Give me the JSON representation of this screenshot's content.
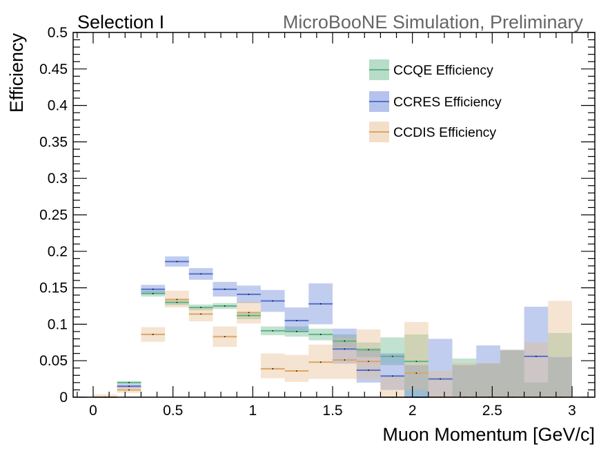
{
  "chart_data": {
    "type": "bar",
    "title_left": "Selection I",
    "title_right": "MicroBooNE Simulation, Preliminary",
    "xlabel": "Muon Momentum [GeV/c]",
    "ylabel": "Efficiency",
    "xlim": [
      -0.125,
      3.125
    ],
    "ylim": [
      0,
      0.5
    ],
    "x_ticks": [
      {
        "value": 0,
        "label": "0"
      },
      {
        "value": 0.5,
        "label": "0.5"
      },
      {
        "value": 1,
        "label": "1"
      },
      {
        "value": 1.5,
        "label": "1.5"
      },
      {
        "value": 2,
        "label": "2"
      },
      {
        "value": 2.5,
        "label": "2.5"
      },
      {
        "value": 3,
        "label": "3"
      }
    ],
    "y_ticks": [
      {
        "value": 0,
        "label": "0"
      },
      {
        "value": 0.05,
        "label": "0.05"
      },
      {
        "value": 0.1,
        "label": "0.1"
      },
      {
        "value": 0.15,
        "label": "0.15"
      },
      {
        "value": 0.2,
        "label": "0.2"
      },
      {
        "value": 0.25,
        "label": "0.25"
      },
      {
        "value": 0.3,
        "label": "0.3"
      },
      {
        "value": 0.35,
        "label": "0.35"
      },
      {
        "value": 0.4,
        "label": "0.4"
      },
      {
        "value": 0.45,
        "label": "0.45"
      },
      {
        "value": 0.5,
        "label": "0.5"
      }
    ],
    "legend_placement": "top-right",
    "bin_edges": [
      0,
      0.15,
      0.3,
      0.45,
      0.6,
      0.75,
      0.9,
      1.05,
      1.2,
      1.35,
      1.5,
      1.65,
      1.8,
      1.95,
      2.1,
      2.25,
      2.4,
      2.55,
      2.7,
      2.85,
      3.0
    ],
    "series": [
      {
        "name": "CCQE Efficiency",
        "line_color": "#5fb385",
        "band_color": "#5fb385",
        "bins": [
          {
            "x0": 0.15,
            "x1": 0.3,
            "y": 0.02,
            "lo": 0.018,
            "hi": 0.022
          },
          {
            "x0": 0.3,
            "x1": 0.45,
            "y": 0.142,
            "lo": 0.138,
            "hi": 0.146
          },
          {
            "x0": 0.45,
            "x1": 0.6,
            "y": 0.13,
            "lo": 0.126,
            "hi": 0.134
          },
          {
            "x0": 0.6,
            "x1": 0.75,
            "y": 0.123,
            "lo": 0.119,
            "hi": 0.127
          },
          {
            "x0": 0.75,
            "x1": 0.9,
            "y": 0.125,
            "lo": 0.121,
            "hi": 0.129
          },
          {
            "x0": 0.9,
            "x1": 1.05,
            "y": 0.112,
            "lo": 0.107,
            "hi": 0.117
          },
          {
            "x0": 1.05,
            "x1": 1.2,
            "y": 0.091,
            "lo": 0.085,
            "hi": 0.097
          },
          {
            "x0": 1.2,
            "x1": 1.35,
            "y": 0.09,
            "lo": 0.083,
            "hi": 0.097
          },
          {
            "x0": 1.35,
            "x1": 1.5,
            "y": 0.086,
            "lo": 0.078,
            "hi": 0.094
          },
          {
            "x0": 1.5,
            "x1": 1.65,
            "y": 0.077,
            "lo": 0.068,
            "hi": 0.086
          },
          {
            "x0": 1.65,
            "x1": 1.8,
            "y": 0.065,
            "lo": 0.055,
            "hi": 0.075
          },
          {
            "x0": 1.8,
            "x1": 1.95,
            "y": 0.056,
            "lo": 0.044,
            "hi": 0.082
          },
          {
            "x0": 1.95,
            "x1": 2.1,
            "y": 0.049,
            "lo": 0.0,
            "hi": 0.086
          },
          {
            "x0": 2.25,
            "x1": 2.4,
            "y": 0.0,
            "lo": 0.0,
            "hi": 0.053
          },
          {
            "x0": 2.4,
            "x1": 2.55,
            "y": 0.0,
            "lo": 0.0,
            "hi": 0.046
          },
          {
            "x0": 2.55,
            "x1": 2.7,
            "y": 0.0,
            "lo": 0.0,
            "hi": 0.064
          },
          {
            "x0": 2.7,
            "x1": 2.85,
            "y": 0.0,
            "lo": 0.0,
            "hi": 0.02
          },
          {
            "x0": 2.85,
            "x1": 3.0,
            "y": 0.0,
            "lo": 0.0,
            "hi": 0.088
          }
        ]
      },
      {
        "name": "CCRES Efficiency",
        "line_color": "#5570c9",
        "band_color": "#5b7bd4",
        "bins": [
          {
            "x0": 0.15,
            "x1": 0.3,
            "y": 0.015,
            "lo": 0.012,
            "hi": 0.018
          },
          {
            "x0": 0.3,
            "x1": 0.45,
            "y": 0.148,
            "lo": 0.142,
            "hi": 0.154
          },
          {
            "x0": 0.45,
            "x1": 0.6,
            "y": 0.186,
            "lo": 0.179,
            "hi": 0.193
          },
          {
            "x0": 0.6,
            "x1": 0.75,
            "y": 0.169,
            "lo": 0.161,
            "hi": 0.177
          },
          {
            "x0": 0.75,
            "x1": 0.9,
            "y": 0.148,
            "lo": 0.138,
            "hi": 0.158
          },
          {
            "x0": 0.9,
            "x1": 1.05,
            "y": 0.141,
            "lo": 0.129,
            "hi": 0.153
          },
          {
            "x0": 1.05,
            "x1": 1.2,
            "y": 0.132,
            "lo": 0.117,
            "hi": 0.147
          },
          {
            "x0": 1.2,
            "x1": 1.35,
            "y": 0.105,
            "lo": 0.09,
            "hi": 0.123
          },
          {
            "x0": 1.35,
            "x1": 1.5,
            "y": 0.128,
            "lo": 0.1,
            "hi": 0.156
          },
          {
            "x0": 1.5,
            "x1": 1.65,
            "y": 0.066,
            "lo": 0.046,
            "hi": 0.094
          },
          {
            "x0": 1.65,
            "x1": 1.8,
            "y": 0.037,
            "lo": 0.02,
            "hi": 0.067
          },
          {
            "x0": 1.8,
            "x1": 1.95,
            "y": 0.029,
            "lo": 0.01,
            "hi": 0.06
          },
          {
            "x0": 1.95,
            "x1": 2.1,
            "y": 0.0,
            "lo": 0.0,
            "hi": 0.044
          },
          {
            "x0": 2.1,
            "x1": 2.25,
            "y": 0.025,
            "lo": 0.0,
            "hi": 0.08
          },
          {
            "x0": 2.25,
            "x1": 2.4,
            "y": 0.0,
            "lo": 0.0,
            "hi": 0.044
          },
          {
            "x0": 2.4,
            "x1": 2.55,
            "y": 0.0,
            "lo": 0.0,
            "hi": 0.071
          },
          {
            "x0": 2.55,
            "x1": 2.7,
            "y": 0.0,
            "lo": 0.0,
            "hi": 0.065
          },
          {
            "x0": 2.7,
            "x1": 2.85,
            "y": 0.056,
            "lo": 0.0,
            "hi": 0.124
          },
          {
            "x0": 2.85,
            "x1": 3.0,
            "y": 0.0,
            "lo": 0.0,
            "hi": 0.055
          }
        ]
      },
      {
        "name": "CCDIS Efficiency",
        "line_color": "#dba567",
        "band_color": "#e4b786",
        "bins": [
          {
            "x0": 0.0,
            "x1": 0.15,
            "y": 0.0,
            "lo": 0.0,
            "hi": 0.004
          },
          {
            "x0": 0.15,
            "x1": 0.3,
            "y": 0.01,
            "lo": 0.006,
            "hi": 0.014
          },
          {
            "x0": 0.3,
            "x1": 0.45,
            "y": 0.086,
            "lo": 0.076,
            "hi": 0.096
          },
          {
            "x0": 0.45,
            "x1": 0.6,
            "y": 0.134,
            "lo": 0.123,
            "hi": 0.146
          },
          {
            "x0": 0.6,
            "x1": 0.75,
            "y": 0.114,
            "lo": 0.104,
            "hi": 0.124
          },
          {
            "x0": 0.75,
            "x1": 0.9,
            "y": 0.083,
            "lo": 0.069,
            "hi": 0.097
          },
          {
            "x0": 0.9,
            "x1": 1.05,
            "y": 0.116,
            "lo": 0.101,
            "hi": 0.131
          },
          {
            "x0": 1.05,
            "x1": 1.2,
            "y": 0.039,
            "lo": 0.026,
            "hi": 0.06
          },
          {
            "x0": 1.2,
            "x1": 1.35,
            "y": 0.036,
            "lo": 0.021,
            "hi": 0.058
          },
          {
            "x0": 1.35,
            "x1": 1.5,
            "y": 0.048,
            "lo": 0.025,
            "hi": 0.072
          },
          {
            "x0": 1.5,
            "x1": 1.65,
            "y": 0.051,
            "lo": 0.025,
            "hi": 0.082
          },
          {
            "x0": 1.65,
            "x1": 1.8,
            "y": 0.049,
            "lo": 0.025,
            "hi": 0.093
          },
          {
            "x0": 1.8,
            "x1": 1.95,
            "y": 0.0,
            "lo": 0.0,
            "hi": 0.028
          },
          {
            "x0": 1.95,
            "x1": 2.1,
            "y": 0.033,
            "lo": 0.01,
            "hi": 0.103
          },
          {
            "x0": 2.1,
            "x1": 2.25,
            "y": 0.0,
            "lo": 0.0,
            "hi": 0.036
          },
          {
            "x0": 2.25,
            "x1": 2.4,
            "y": 0.0,
            "lo": 0.0,
            "hi": 0.047
          },
          {
            "x0": 2.4,
            "x1": 2.55,
            "y": 0.0,
            "lo": 0.0,
            "hi": 0.047
          },
          {
            "x0": 2.55,
            "x1": 2.7,
            "y": 0.0,
            "lo": 0.0,
            "hi": 0.065
          },
          {
            "x0": 2.7,
            "x1": 2.85,
            "y": 0.0,
            "lo": 0.0,
            "hi": 0.075
          },
          {
            "x0": 2.85,
            "x1": 3.0,
            "y": 0.0,
            "lo": 0.0,
            "hi": 0.132
          }
        ]
      }
    ]
  }
}
